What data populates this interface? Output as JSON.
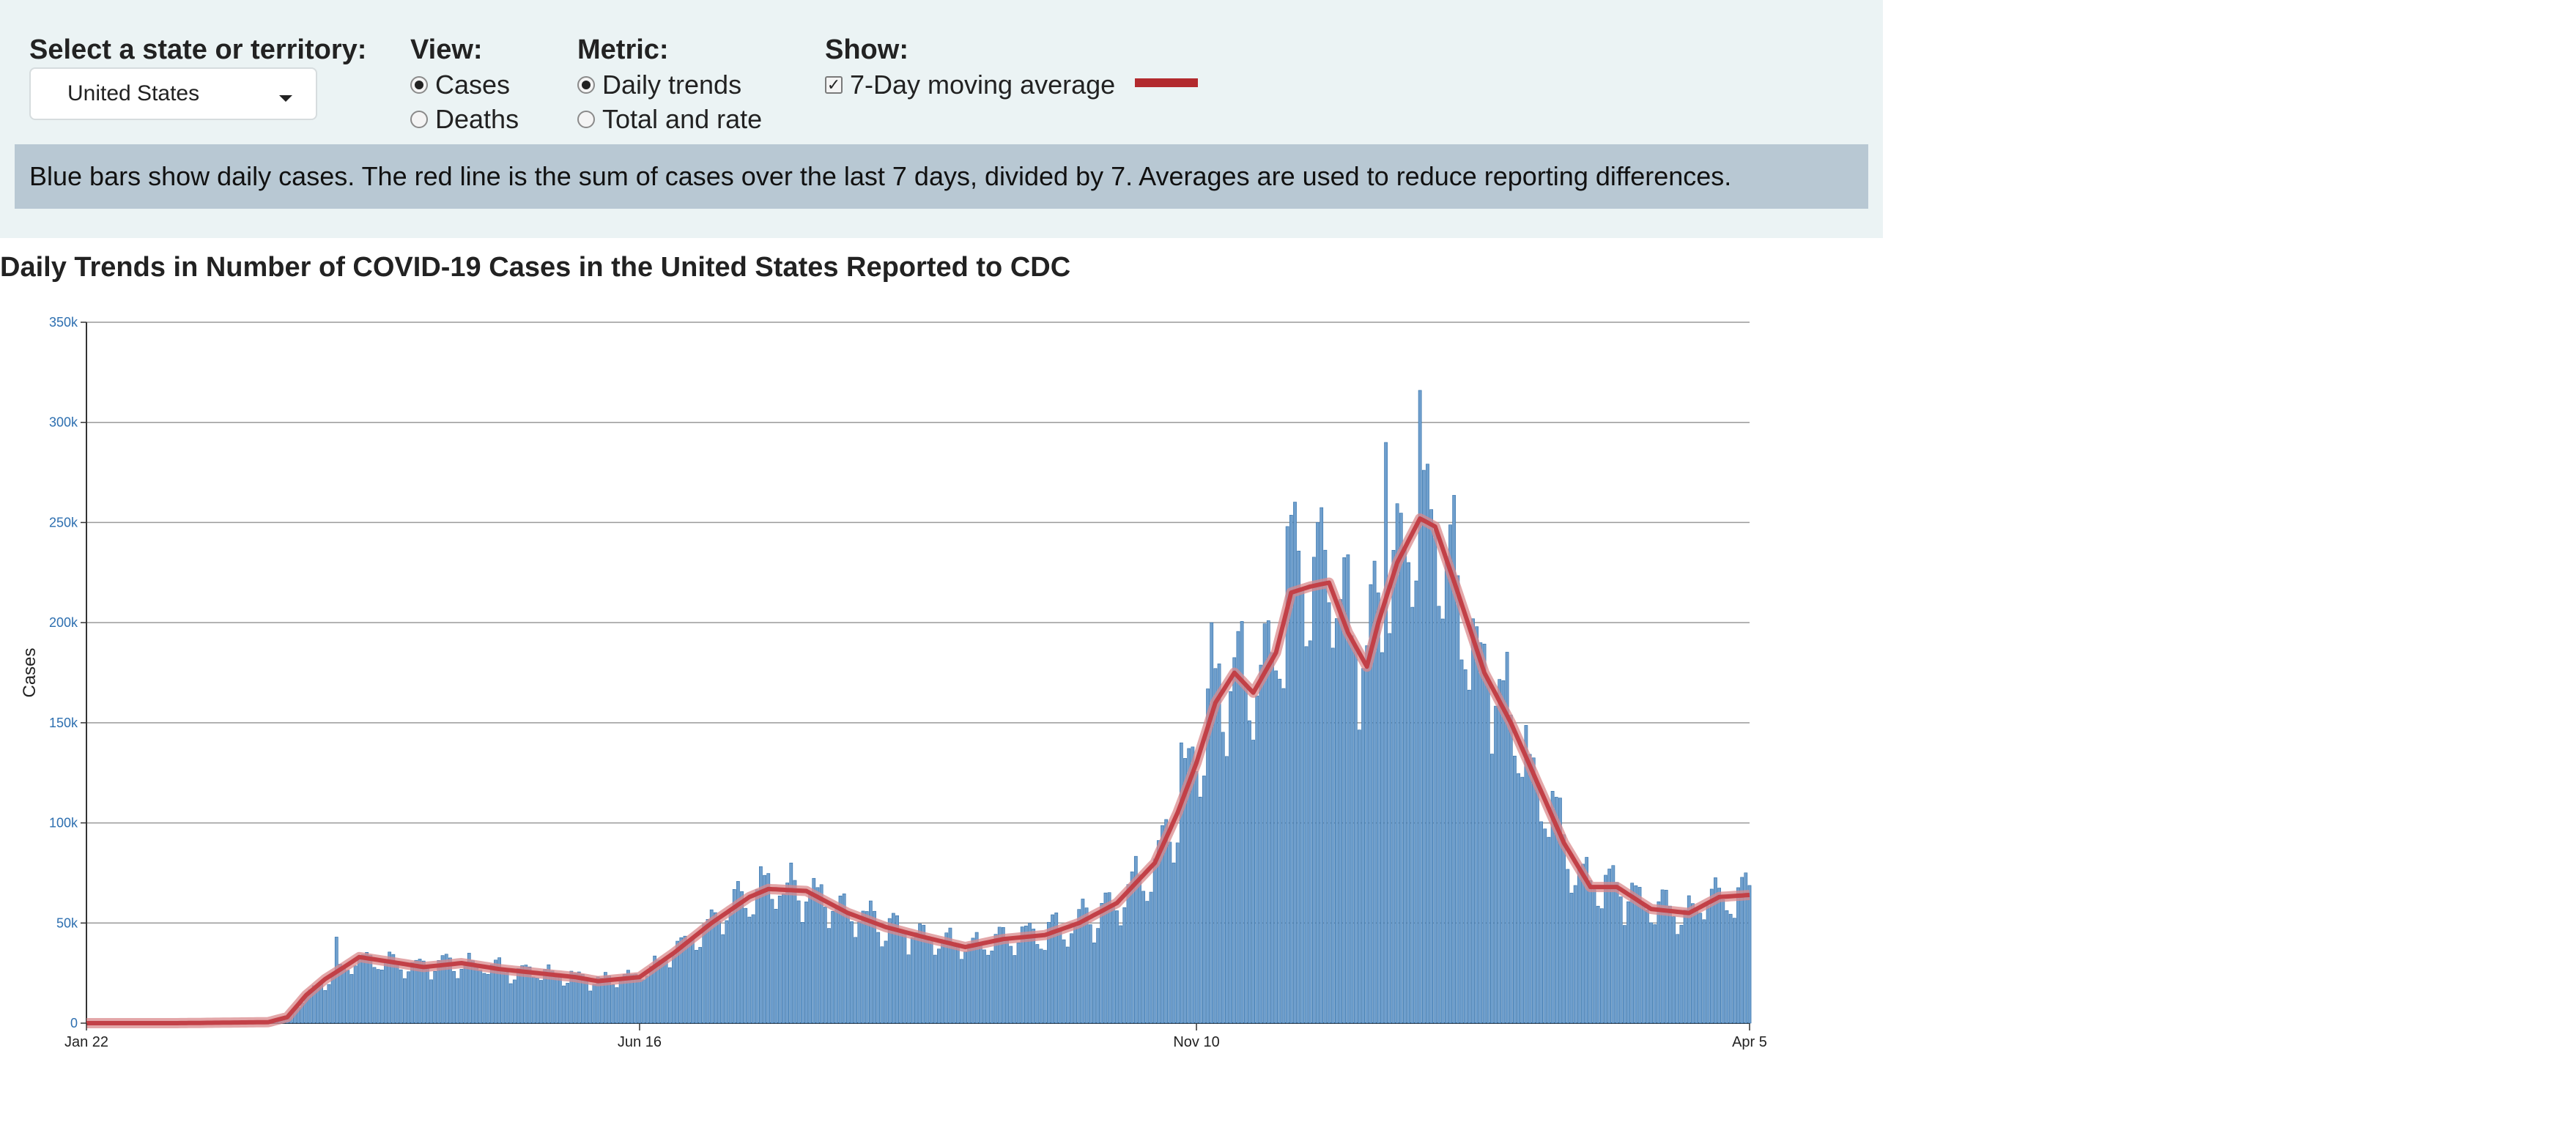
{
  "controls": {
    "state_label": "Select a state or territory:",
    "state_value": "United States",
    "view_label": "View:",
    "view_options": [
      "Cases",
      "Deaths"
    ],
    "metric_label": "Metric:",
    "metric_options": [
      "Daily trends",
      "Total and rate"
    ],
    "show_label": "Show:",
    "show_option": "7-Day moving average",
    "moving_average_color": "#b22a2e",
    "bar_color": "#3b7bbf"
  },
  "info_text": "Blue bars show daily cases. The red line is the sum of cases over the last 7 days, divided by 7. Averages are used to reduce reporting differences.",
  "chart_title": "Daily Trends in Number of COVID-19 Cases in the United States Reported to CDC",
  "chart_data": {
    "type": "bar",
    "title": "Daily Trends in Number of COVID-19 Cases in the United States Reported to CDC",
    "xlabel": "",
    "ylabel": "Cases",
    "ylim": [
      0,
      350000
    ],
    "yticks": [
      "0",
      "50k",
      "100k",
      "150k",
      "200k",
      "250k",
      "300k",
      "350k"
    ],
    "xticks": [
      "Jan 22",
      "Jun 16",
      "Nov 10",
      "Apr 5"
    ],
    "grid": true,
    "series": [
      {
        "type": "bar",
        "values_note": "daily cases, one bar per day Jan 22 to Apr 5"
      },
      {
        "name": "7-Day moving average",
        "type": "line"
      }
    ],
    "daily_cases_points": [
      [
        "Jan 22",
        0
      ],
      [
        "Feb 15",
        0
      ],
      [
        "Mar 10",
        500
      ],
      [
        "Mar 15",
        3000
      ],
      [
        "Mar 20",
        14000
      ],
      [
        "Mar 25",
        22000
      ],
      [
        "Mar 30",
        28000
      ],
      [
        "Apr 3",
        33000
      ],
      [
        "Apr 10",
        31000
      ],
      [
        "Apr 20",
        28000
      ],
      [
        "Apr 30",
        30000
      ],
      [
        "May 10",
        27000
      ],
      [
        "May 20",
        25000
      ],
      [
        "May 30",
        23000
      ],
      [
        "Jun 5",
        21000
      ],
      [
        "Jun 16",
        23000
      ],
      [
        "Jun 25",
        35000
      ],
      [
        "Jul 5",
        50000
      ],
      [
        "Jul 15",
        63000
      ],
      [
        "Jul 20",
        67000
      ],
      [
        "Jul 30",
        66000
      ],
      [
        "Aug 10",
        55000
      ],
      [
        "Aug 20",
        48000
      ],
      [
        "Aug 30",
        43000
      ],
      [
        "Sep 10",
        38000
      ],
      [
        "Sep 20",
        42000
      ],
      [
        "Oct 1",
        44000
      ],
      [
        "Oct 10",
        50000
      ],
      [
        "Oct 20",
        60000
      ],
      [
        "Oct 30",
        80000
      ],
      [
        "Nov 5",
        105000
      ],
      [
        "Nov 10",
        130000
      ],
      [
        "Nov 15",
        160000
      ],
      [
        "Nov 20",
        175000
      ],
      [
        "Nov 25",
        165000
      ],
      [
        "Dec 1",
        185000
      ],
      [
        "Dec 5",
        215000
      ],
      [
        "Dec 10",
        218000
      ],
      [
        "Dec 15",
        220000
      ],
      [
        "Dec 20",
        195000
      ],
      [
        "Dec 25",
        178000
      ],
      [
        "Dec 28",
        200000
      ],
      [
        "Jan 2",
        230000
      ],
      [
        "Jan 8",
        252000
      ],
      [
        "Jan 12",
        248000
      ],
      [
        "Jan 18",
        215000
      ],
      [
        "Jan 25",
        175000
      ],
      [
        "Feb 1",
        150000
      ],
      [
        "Feb 8",
        120000
      ],
      [
        "Feb 15",
        90000
      ],
      [
        "Feb 22",
        68000
      ],
      [
        "Mar 1",
        68000
      ],
      [
        "Mar 10",
        57000
      ],
      [
        "Mar 20",
        55000
      ],
      [
        "Mar 28",
        63000
      ],
      [
        "Apr 5",
        64000
      ]
    ],
    "spikes": [
      [
        "Mar 28",
        43000
      ],
      [
        "Nov 6",
        140000
      ],
      [
        "Nov 14",
        200000
      ],
      [
        "Dec 4",
        248000
      ],
      [
        "Dec 12",
        250000
      ],
      [
        "Dec 30",
        290000
      ],
      [
        "Jan 8",
        316000
      ],
      [
        "Jan 15",
        233000
      ],
      [
        "Jan 24",
        190000
      ]
    ]
  }
}
